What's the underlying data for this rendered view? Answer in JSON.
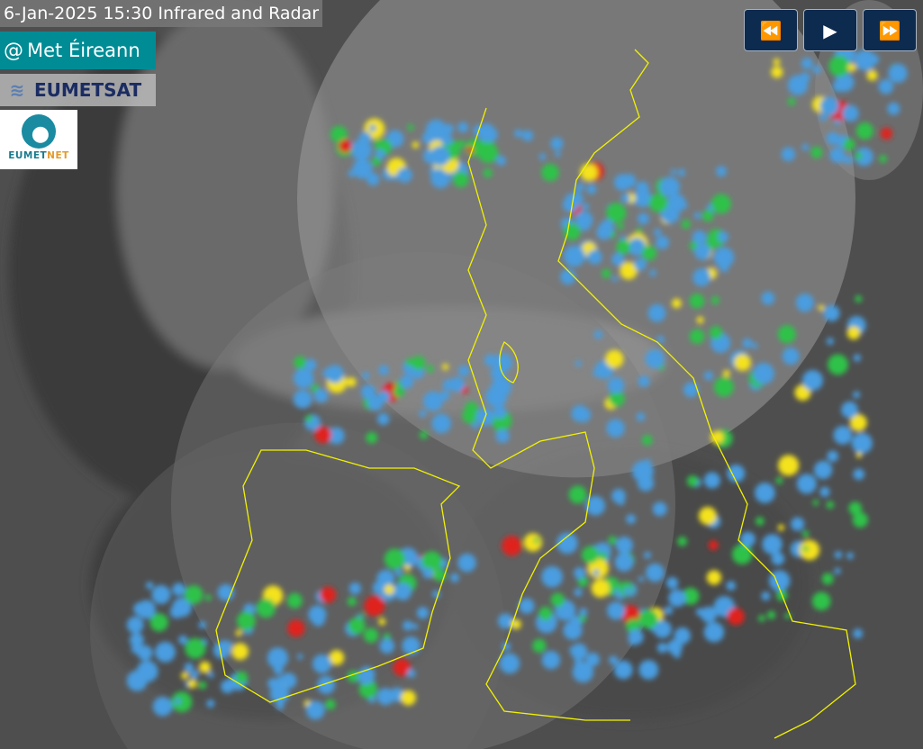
{
  "header": {
    "title": "6-Jan-2025 15:30 Infrared and Radar"
  },
  "logos": {
    "met_eireann": "Met Éireann",
    "eumetsat": "EUMETSAT",
    "eumetnet_a": "EUMET",
    "eumetnet_b": "NET"
  },
  "controls": [
    {
      "name": "rewind-button",
      "icon": "fast-backward-icon",
      "glyph": "⏪"
    },
    {
      "name": "play-button",
      "icon": "play-icon",
      "glyph": "▶"
    },
    {
      "name": "fast-forward-button",
      "icon": "fast-forward-icon",
      "glyph": "⏩"
    }
  ],
  "colors": {
    "coastline": "#f2f200",
    "radar_light": "#4a9de0",
    "radar_mid": "#2ec24a",
    "radar_high": "#f4e21a",
    "radar_max": "#e0221e",
    "button_bg": "#0d2a4f"
  }
}
